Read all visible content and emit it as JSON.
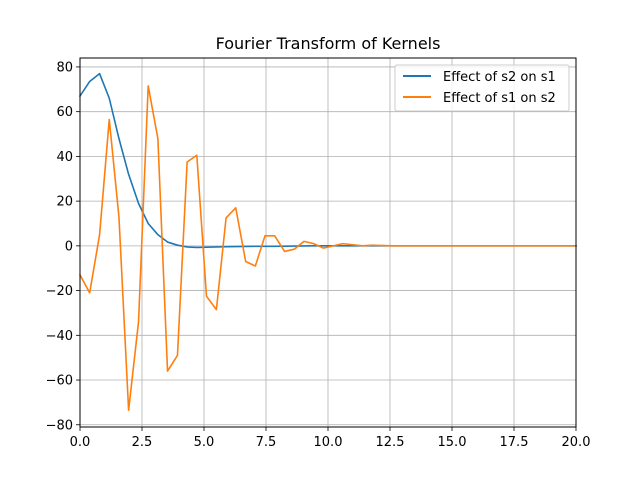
{
  "chart_data": {
    "type": "line",
    "title": "Fourier Transform of Kernels",
    "xlabel": "",
    "ylabel": "",
    "xlim": [
      0,
      20
    ],
    "ylim": [
      -81,
      84
    ],
    "xticks": [
      0,
      2.5,
      5,
      7.5,
      10,
      12.5,
      15,
      17.5,
      20
    ],
    "xtick_labels": [
      "0.0",
      "2.5",
      "5.0",
      "7.5",
      "10.0",
      "12.5",
      "15.0",
      "17.5",
      "20.0"
    ],
    "yticks": [
      -80,
      -60,
      -40,
      -20,
      0,
      20,
      40,
      60,
      80
    ],
    "ytick_labels": [
      "−80",
      "−60",
      "−40",
      "−20",
      "0",
      "20",
      "40",
      "60",
      "80"
    ],
    "grid": true,
    "legend_position": "top-right",
    "series": [
      {
        "name": "Effect of s2 on s1",
        "color": "#1f77b4",
        "x": [
          0,
          0.39,
          0.79,
          1.18,
          1.57,
          1.96,
          2.36,
          2.75,
          3.14,
          3.53,
          3.93,
          4.32,
          4.71,
          5.1,
          5.5,
          5.89,
          6.28,
          7.07,
          7.85,
          8.64,
          9.42,
          10.21,
          11,
          11.78,
          12.57,
          20
        ],
        "y": [
          67,
          73.5,
          77,
          66,
          48,
          32,
          19,
          10,
          5,
          1.7,
          0.3,
          -0.5,
          -0.7,
          -0.6,
          -0.5,
          -0.4,
          -0.3,
          -0.2,
          -0.2,
          -0.1,
          0,
          0,
          0,
          0,
          0,
          0
        ]
      },
      {
        "name": "Effect of s1 on s2",
        "color": "#ff7f0e",
        "x": [
          0,
          0.39,
          0.79,
          1.18,
          1.57,
          1.96,
          2.36,
          2.75,
          3.14,
          3.53,
          3.93,
          4.32,
          4.71,
          5.1,
          5.5,
          5.89,
          6.28,
          6.68,
          7.07,
          7.46,
          7.85,
          8.25,
          8.64,
          9.03,
          9.42,
          9.82,
          10.21,
          10.6,
          11,
          11.39,
          11.78,
          12.57,
          20
        ],
        "y": [
          -13,
          -21,
          5,
          56.5,
          13,
          -73.5,
          -34,
          71.5,
          48,
          -56,
          -49,
          37.5,
          40.5,
          -22.5,
          -28.5,
          12.5,
          17,
          -7,
          -9,
          4.5,
          4.5,
          -2.5,
          -1.5,
          2,
          1,
          -1,
          0,
          1,
          0.5,
          0,
          0.3,
          0,
          0
        ]
      }
    ]
  }
}
